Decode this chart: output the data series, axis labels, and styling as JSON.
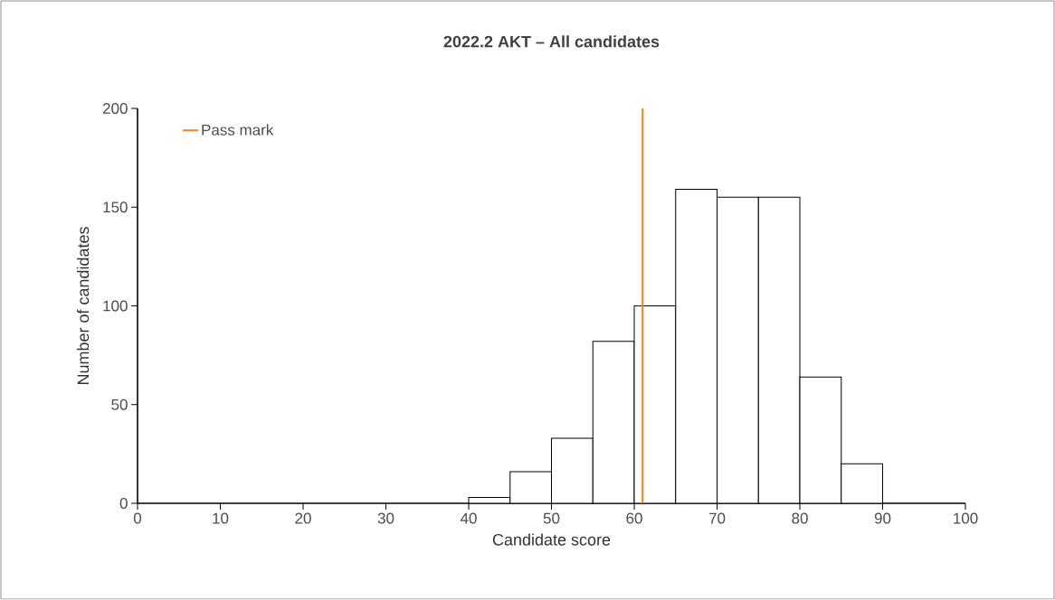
{
  "chart_data": {
    "type": "histogram",
    "title": "2022.2 AKT – All candidates",
    "xlabel": "Candidate score",
    "ylabel": "Number of candidates",
    "bins": [
      40,
      45,
      50,
      55,
      60,
      65,
      70,
      75,
      80,
      85,
      90
    ],
    "values": [
      3,
      16,
      33,
      82,
      100,
      159,
      155,
      155,
      64,
      20
    ],
    "color": "#ffffff",
    "series": [
      {
        "type": "line",
        "name": "Pass mark",
        "color": "#ff7f1e",
        "x": [
          61,
          61
        ],
        "values": [
          0,
          200
        ]
      }
    ],
    "xlim": [
      0,
      100
    ],
    "xticks": [
      0,
      10,
      20,
      30,
      40,
      50,
      60,
      70,
      80,
      90,
      100
    ],
    "ylim": [
      0,
      200
    ],
    "yticks": [
      0,
      50,
      100,
      150,
      200
    ],
    "grid": false,
    "legend": "top left"
  }
}
